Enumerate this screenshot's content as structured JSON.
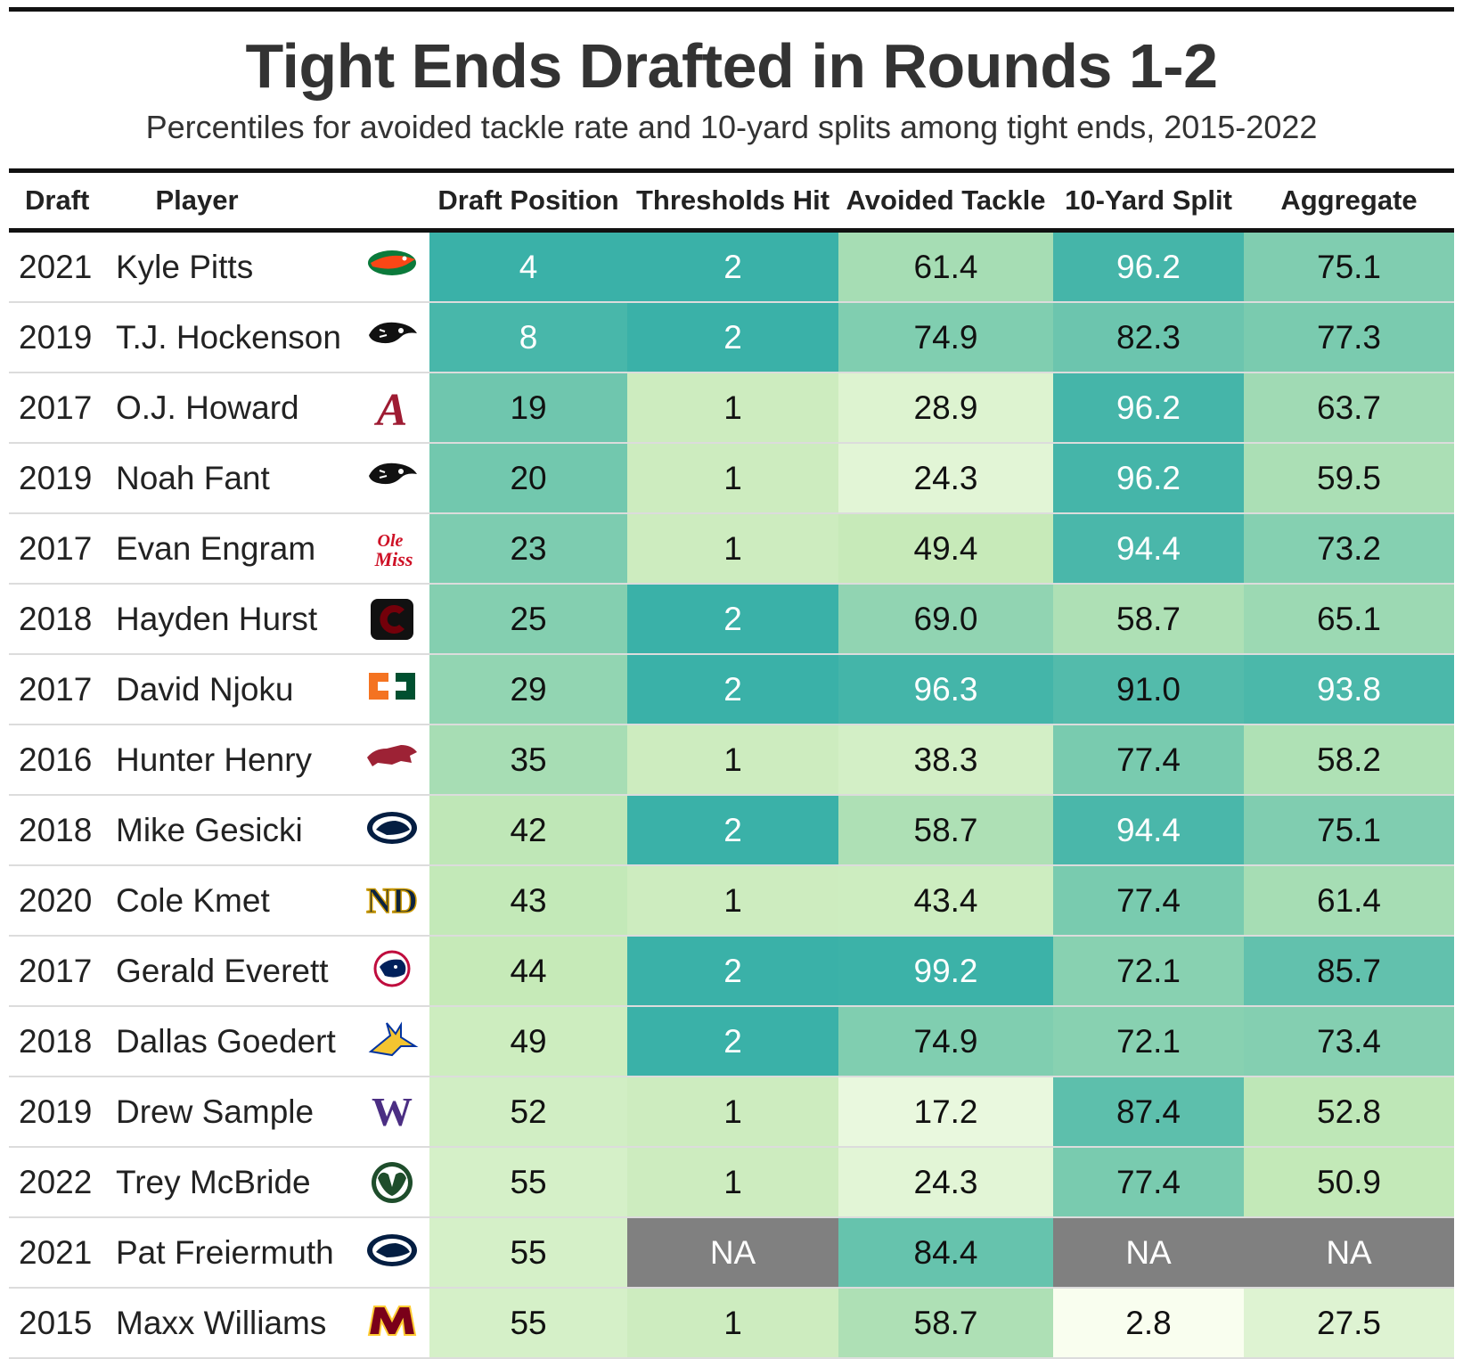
{
  "title": "Tight Ends Drafted in Rounds 1-2",
  "subtitle": "Percentiles for avoided tackle rate and 10-yard splits among tight ends, 2015-2022",
  "headers": {
    "draft": "Draft",
    "player": "Player",
    "draft_position": "Draft Position",
    "thresholds_hit": "Thresholds Hit",
    "avoided_tackle": "Avoided Tackle",
    "split": "10-Yard Split",
    "aggregate": "Aggregate"
  },
  "chart_data": {
    "type": "table",
    "title": "Tight Ends Drafted in Rounds 1-2",
    "subtitle": "Percentiles for avoided tackle rate and 10-yard splits among tight ends, 2015-2022",
    "columns": [
      "Draft",
      "Player",
      "Draft Position",
      "Thresholds Hit",
      "Avoided Tackle",
      "10-Yard Split",
      "Aggregate"
    ],
    "rows": [
      {
        "draft": "2021",
        "player": "Kyle Pitts",
        "school_logo": "florida-gator-logo",
        "draft_position": "4",
        "thresholds_hit": "2",
        "avoided_tackle": "61.4",
        "split": "96.2",
        "aggregate": "75.1"
      },
      {
        "draft": "2019",
        "player": "T.J. Hockenson",
        "school_logo": "iowa-hawkeye-logo",
        "draft_position": "8",
        "thresholds_hit": "2",
        "avoided_tackle": "74.9",
        "split": "82.3",
        "aggregate": "77.3"
      },
      {
        "draft": "2017",
        "player": "O.J. Howard",
        "school_logo": "alabama-a-logo",
        "draft_position": "19",
        "thresholds_hit": "1",
        "avoided_tackle": "28.9",
        "split": "96.2",
        "aggregate": "63.7"
      },
      {
        "draft": "2019",
        "player": "Noah Fant",
        "school_logo": "iowa-hawkeye-logo",
        "draft_position": "20",
        "thresholds_hit": "1",
        "avoided_tackle": "24.3",
        "split": "96.2",
        "aggregate": "59.5"
      },
      {
        "draft": "2017",
        "player": "Evan Engram",
        "school_logo": "ole-miss-script-logo",
        "draft_position": "23",
        "thresholds_hit": "1",
        "avoided_tackle": "49.4",
        "split": "94.4",
        "aggregate": "73.2"
      },
      {
        "draft": "2018",
        "player": "Hayden Hurst",
        "school_logo": "south-carolina-c-logo",
        "draft_position": "25",
        "thresholds_hit": "2",
        "avoided_tackle": "69.0",
        "split": "58.7",
        "aggregate": "65.1"
      },
      {
        "draft": "2017",
        "player": "David Njoku",
        "school_logo": "miami-u-logo",
        "draft_position": "29",
        "thresholds_hit": "2",
        "avoided_tackle": "96.3",
        "split": "91.0",
        "aggregate": "93.8"
      },
      {
        "draft": "2016",
        "player": "Hunter Henry",
        "school_logo": "arkansas-razorback-logo",
        "draft_position": "35",
        "thresholds_hit": "1",
        "avoided_tackle": "38.3",
        "split": "77.4",
        "aggregate": "58.2"
      },
      {
        "draft": "2018",
        "player": "Mike Gesicki",
        "school_logo": "penn-state-lion-logo",
        "draft_position": "42",
        "thresholds_hit": "2",
        "avoided_tackle": "58.7",
        "split": "94.4",
        "aggregate": "75.1"
      },
      {
        "draft": "2020",
        "player": "Cole Kmet",
        "school_logo": "notre-dame-nd-logo",
        "draft_position": "43",
        "thresholds_hit": "1",
        "avoided_tackle": "43.4",
        "split": "77.4",
        "aggregate": "61.4"
      },
      {
        "draft": "2017",
        "player": "Gerald Everett",
        "school_logo": "south-alabama-jaguar-logo",
        "draft_position": "44",
        "thresholds_hit": "2",
        "avoided_tackle": "99.2",
        "split": "72.1",
        "aggregate": "85.7"
      },
      {
        "draft": "2018",
        "player": "Dallas Goedert",
        "school_logo": "south-dakota-state-jackrabbit-logo",
        "draft_position": "49",
        "thresholds_hit": "2",
        "avoided_tackle": "74.9",
        "split": "72.1",
        "aggregate": "73.4"
      },
      {
        "draft": "2019",
        "player": "Drew Sample",
        "school_logo": "washington-w-logo",
        "draft_position": "52",
        "thresholds_hit": "1",
        "avoided_tackle": "17.2",
        "split": "87.4",
        "aggregate": "52.8"
      },
      {
        "draft": "2022",
        "player": "Trey McBride",
        "school_logo": "colorado-state-ram-logo",
        "draft_position": "55",
        "thresholds_hit": "1",
        "avoided_tackle": "24.3",
        "split": "77.4",
        "aggregate": "50.9"
      },
      {
        "draft": "2021",
        "player": "Pat Freiermuth",
        "school_logo": "penn-state-lion-logo",
        "draft_position": "55",
        "thresholds_hit": "NA",
        "avoided_tackle": "84.4",
        "split": "NA",
        "aggregate": "NA"
      },
      {
        "draft": "2015",
        "player": "Maxx Williams",
        "school_logo": "minnesota-m-logo",
        "draft_position": "55",
        "thresholds_hit": "1",
        "avoided_tackle": "58.7",
        "split": "2.8",
        "aggregate": "27.5"
      }
    ]
  },
  "colors": {
    "scale_low": "#fcfff2",
    "scale_mid": "#c6eab8",
    "scale_high": "#3ab1a8",
    "na": "#808080"
  }
}
